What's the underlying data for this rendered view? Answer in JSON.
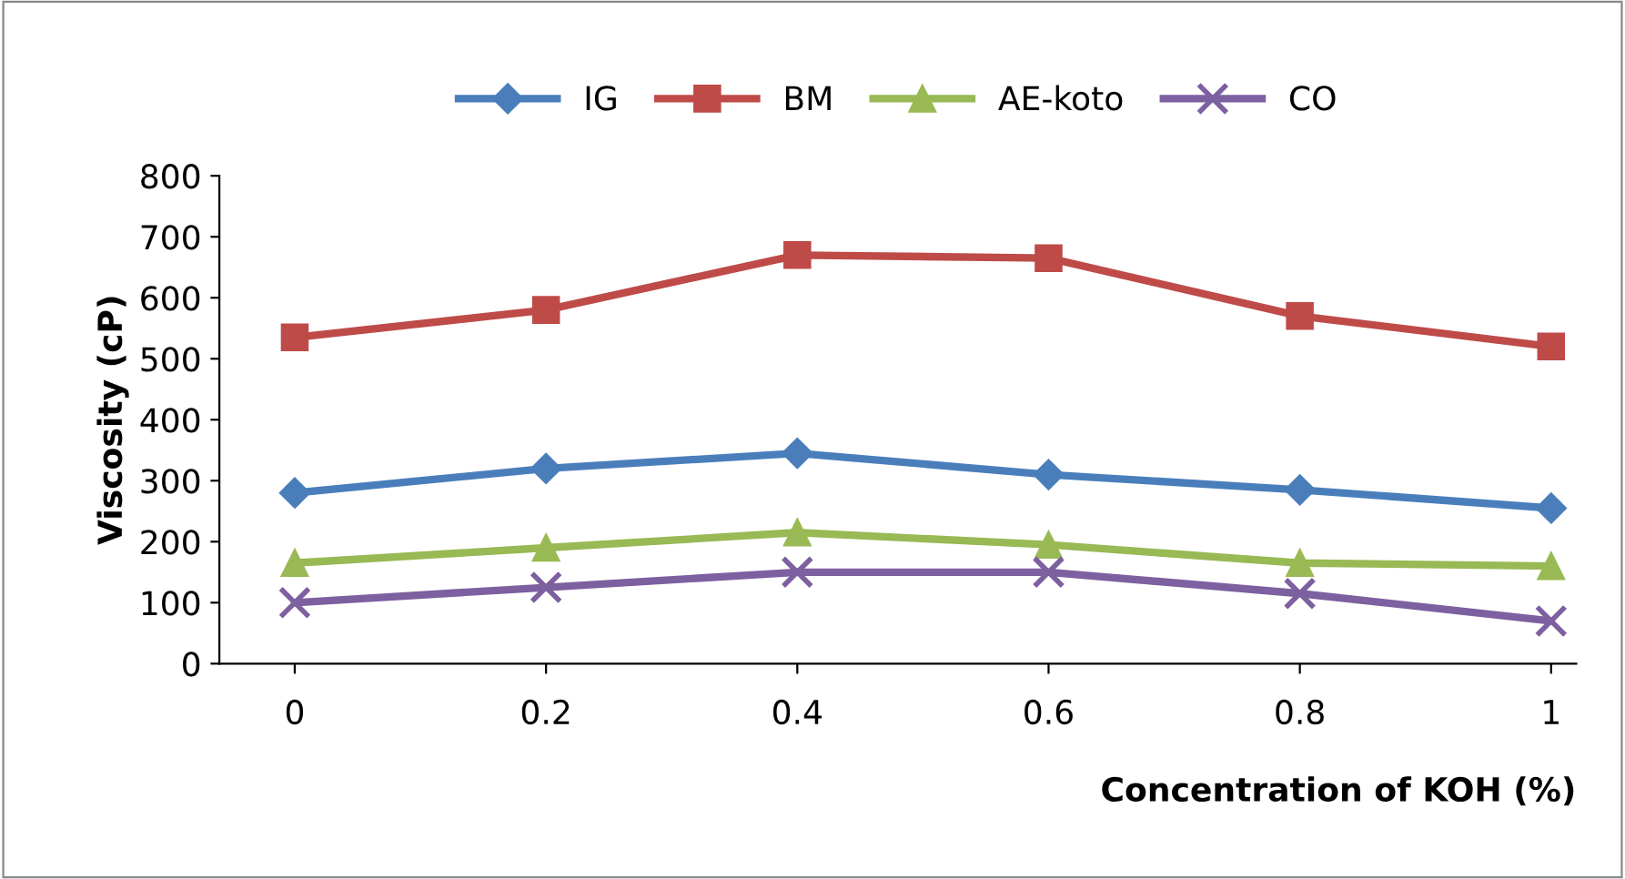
{
  "chart_data": {
    "type": "line",
    "xlabel": "Concentration of KOH (%)",
    "ylabel": "Viscosity (cP)",
    "x": [
      0,
      0.2,
      0.4,
      0.6,
      0.8,
      1
    ],
    "xlim": [
      -0.06,
      1.02
    ],
    "xticks": [
      0,
      0.2,
      0.4,
      0.6,
      0.8,
      1
    ],
    "ylim": [
      0,
      800
    ],
    "yticks": [
      0,
      100,
      200,
      300,
      400,
      500,
      600,
      700,
      800
    ],
    "grid": false,
    "legend": "top",
    "series": [
      {
        "name": "IG",
        "color": "#4a7ebb",
        "marker": "diamond",
        "values": [
          280,
          320,
          345,
          310,
          285,
          255
        ]
      },
      {
        "name": "BM",
        "color": "#be4b48",
        "marker": "square",
        "values": [
          535,
          580,
          670,
          665,
          570,
          520
        ]
      },
      {
        "name": "AE-koto",
        "color": "#98b954",
        "marker": "triangle",
        "values": [
          165,
          190,
          215,
          195,
          165,
          160
        ]
      },
      {
        "name": "CO",
        "color": "#7d60a0",
        "marker": "cross",
        "values": [
          100,
          125,
          150,
          150,
          115,
          70
        ]
      }
    ]
  }
}
